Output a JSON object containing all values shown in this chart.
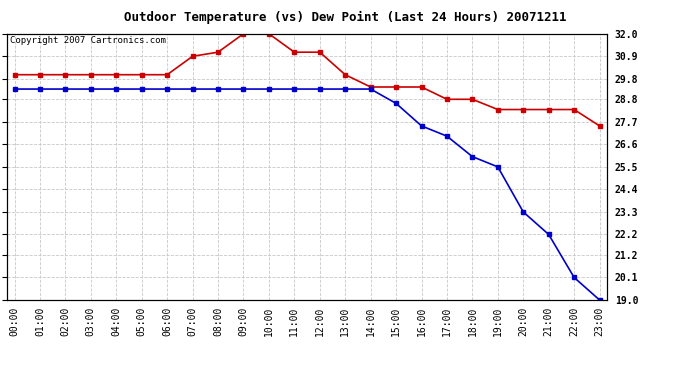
{
  "title": "Outdoor Temperature (vs) Dew Point (Last 24 Hours) 20071211",
  "copyright": "Copyright 2007 Cartronics.com",
  "hours": [
    "00:00",
    "01:00",
    "02:00",
    "03:00",
    "04:00",
    "05:00",
    "06:00",
    "07:00",
    "08:00",
    "09:00",
    "10:00",
    "11:00",
    "12:00",
    "13:00",
    "14:00",
    "15:00",
    "16:00",
    "17:00",
    "18:00",
    "19:00",
    "20:00",
    "21:00",
    "22:00",
    "23:00"
  ],
  "temp_red": [
    30.0,
    30.0,
    30.0,
    30.0,
    30.0,
    30.0,
    30.0,
    30.9,
    31.1,
    32.0,
    32.0,
    31.1,
    31.1,
    30.0,
    29.4,
    29.4,
    29.4,
    28.8,
    28.8,
    28.3,
    28.3,
    28.3,
    28.3,
    27.5
  ],
  "dew_blue": [
    29.3,
    29.3,
    29.3,
    29.3,
    29.3,
    29.3,
    29.3,
    29.3,
    29.3,
    29.3,
    29.3,
    29.3,
    29.3,
    29.3,
    29.3,
    28.6,
    27.5,
    27.0,
    26.0,
    25.5,
    23.3,
    22.2,
    20.1,
    19.0
  ],
  "ylim_min": 19.0,
  "ylim_max": 32.0,
  "yticks": [
    19.0,
    20.1,
    21.2,
    22.2,
    23.3,
    24.4,
    25.5,
    26.6,
    27.7,
    28.8,
    29.8,
    30.9,
    32.0
  ],
  "temp_color": "#cc0000",
  "dew_color": "#0000cc",
  "grid_color": "#c8c8c8",
  "bg_color": "#ffffff",
  "title_fontsize": 9,
  "axis_label_fontsize": 7,
  "copyright_fontsize": 6.5
}
